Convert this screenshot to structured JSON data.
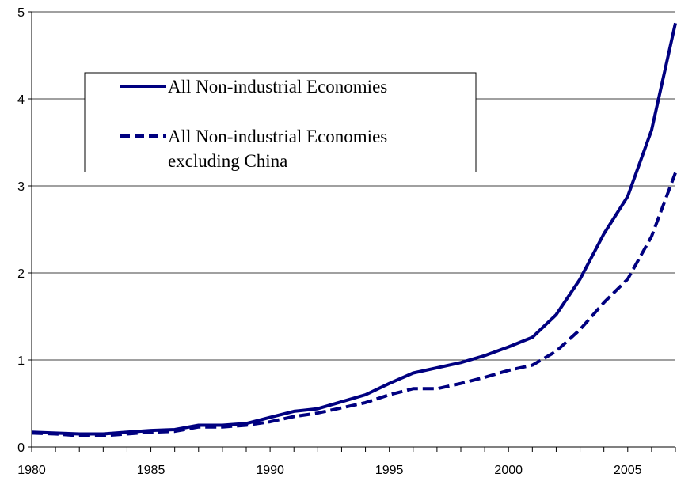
{
  "chart_data": {
    "type": "line",
    "title": "",
    "xlabel": "",
    "ylabel": "",
    "xlim": [
      1980,
      2007
    ],
    "ylim": [
      0,
      5
    ],
    "x_ticks": [
      "1980",
      "1985",
      "1990",
      "1995",
      "2000",
      "2005"
    ],
    "y_ticks": [
      "0",
      "1",
      "2",
      "3",
      "4",
      "5"
    ],
    "grid": "horizontal",
    "legend_position": "top-left",
    "x": [
      1980,
      1981,
      1982,
      1983,
      1984,
      1985,
      1986,
      1987,
      1988,
      1989,
      1990,
      1991,
      1992,
      1993,
      1994,
      1995,
      1996,
      1997,
      1998,
      1999,
      2000,
      2001,
      2002,
      2003,
      2004,
      2005,
      2006,
      2007
    ],
    "series": [
      {
        "name": "All Non-industrial Economies",
        "style": "solid",
        "color": "#000080",
        "values": [
          0.17,
          0.16,
          0.15,
          0.15,
          0.17,
          0.19,
          0.2,
          0.25,
          0.25,
          0.27,
          0.34,
          0.41,
          0.44,
          0.52,
          0.6,
          0.73,
          0.85,
          0.91,
          0.97,
          1.05,
          1.15,
          1.26,
          1.52,
          1.93,
          2.45,
          2.88,
          3.64,
          4.87
        ]
      },
      {
        "name": "All Non-industrial Economies excluding China",
        "legend_lines": [
          "All Non-industrial Economies",
          "excluding China"
        ],
        "style": "dashed",
        "color": "#000080",
        "values": [
          0.16,
          0.15,
          0.13,
          0.13,
          0.15,
          0.17,
          0.18,
          0.23,
          0.23,
          0.25,
          0.29,
          0.35,
          0.39,
          0.45,
          0.51,
          0.6,
          0.67,
          0.67,
          0.73,
          0.8,
          0.88,
          0.94,
          1.1,
          1.35,
          1.66,
          1.93,
          2.42,
          3.15
        ]
      }
    ]
  }
}
